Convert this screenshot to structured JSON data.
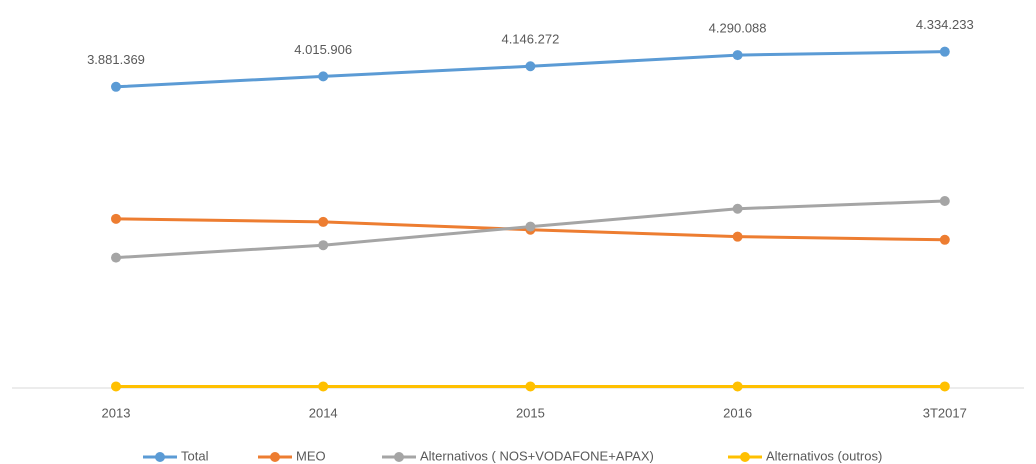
{
  "chart_data": {
    "type": "line",
    "categories": [
      "2013",
      "2014",
      "2015",
      "2016",
      "3T2017"
    ],
    "ylim": [
      0,
      5000000
    ],
    "legend": "bottom",
    "series": [
      {
        "name": "Total",
        "color": "#5b9bd5",
        "values": [
          3881369,
          4015906,
          4146272,
          4290088,
          4334233
        ],
        "value_labels": [
          "3.881.369",
          "4.015.906",
          "4.146.272",
          "4.290.088",
          "4.334.233"
        ]
      },
      {
        "name": "MEO",
        "color": "#ed7d31",
        "values": [
          2180000,
          2140000,
          2040000,
          1950000,
          1910000
        ]
      },
      {
        "name": "Alternativos ( NOS+VODAFONE+APAX)",
        "color": "#a5a5a5",
        "values": [
          1680000,
          1840000,
          2080000,
          2310000,
          2410000
        ]
      },
      {
        "name": "Alternativos (outros)",
        "color": "#ffc000",
        "values": [
          20000,
          20000,
          20000,
          20000,
          20000
        ]
      }
    ]
  }
}
